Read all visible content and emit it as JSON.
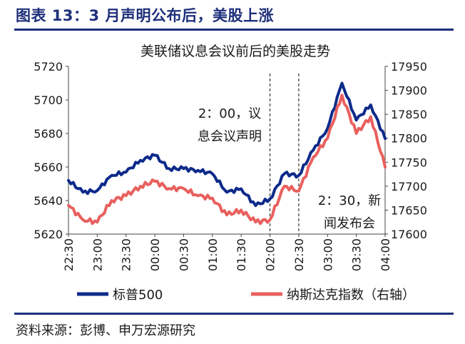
{
  "figure": {
    "title": "图表 13：3 月声明公布后，美股上涨",
    "source": "资料来源：彭博、申万宏源研究"
  },
  "colors": {
    "brand": "#1e2f7a",
    "sp500": "#0d2a8a",
    "nasdaq": "#e8605e",
    "annotation": "#333333"
  },
  "chart_data": {
    "type": "line",
    "title": "美联储议息会议前后的美股走势",
    "x": [
      "22:30",
      "22:45",
      "23:00",
      "23:15",
      "23:30",
      "23:45",
      "00:00",
      "00:15",
      "00:30",
      "00:45",
      "01:00",
      "01:15",
      "01:30",
      "01:45",
      "02:00",
      "02:15",
      "02:30",
      "02:45",
      "03:00",
      "03:15",
      "03:30",
      "03:45",
      "04:00"
    ],
    "x_ticks": [
      "22:30",
      "23:00",
      "23:30",
      "00:00",
      "00:30",
      "01:00",
      "01:30",
      "02:00",
      "02:30",
      "03:00",
      "03:30",
      "04:00"
    ],
    "series": [
      {
        "name": "标普500",
        "axis": "left",
        "values": [
          5652,
          5645,
          5646,
          5655,
          5657,
          5664,
          5667,
          5659,
          5659,
          5658,
          5656,
          5645,
          5647,
          5637,
          5641,
          5656,
          5655,
          5670,
          5683,
          5710,
          5688,
          5697,
          5677
        ]
      },
      {
        "name": "纳斯达克指数（右轴）",
        "axis": "right",
        "values": [
          17660,
          17630,
          17625,
          17670,
          17680,
          17700,
          17710,
          17695,
          17695,
          17680,
          17675,
          17640,
          17650,
          17625,
          17630,
          17700,
          17690,
          17760,
          17800,
          17890,
          17810,
          17845,
          17740
        ]
      }
    ],
    "y_left": {
      "min": 5620,
      "max": 5720,
      "ticks": [
        5620,
        5640,
        5660,
        5680,
        5700,
        5720
      ]
    },
    "y_right": {
      "min": 17600,
      "max": 17950,
      "ticks": [
        17600,
        17650,
        17700,
        17750,
        17800,
        17850,
        17900,
        17950
      ]
    },
    "annotations": [
      {
        "x": "02:00",
        "label_lines": [
          "2：00，议",
          "息会议声明"
        ]
      },
      {
        "x": "02:30",
        "label_lines": [
          "2：30，新",
          "闻发布会"
        ]
      }
    ],
    "legend_position": "bottom",
    "grid": false
  }
}
